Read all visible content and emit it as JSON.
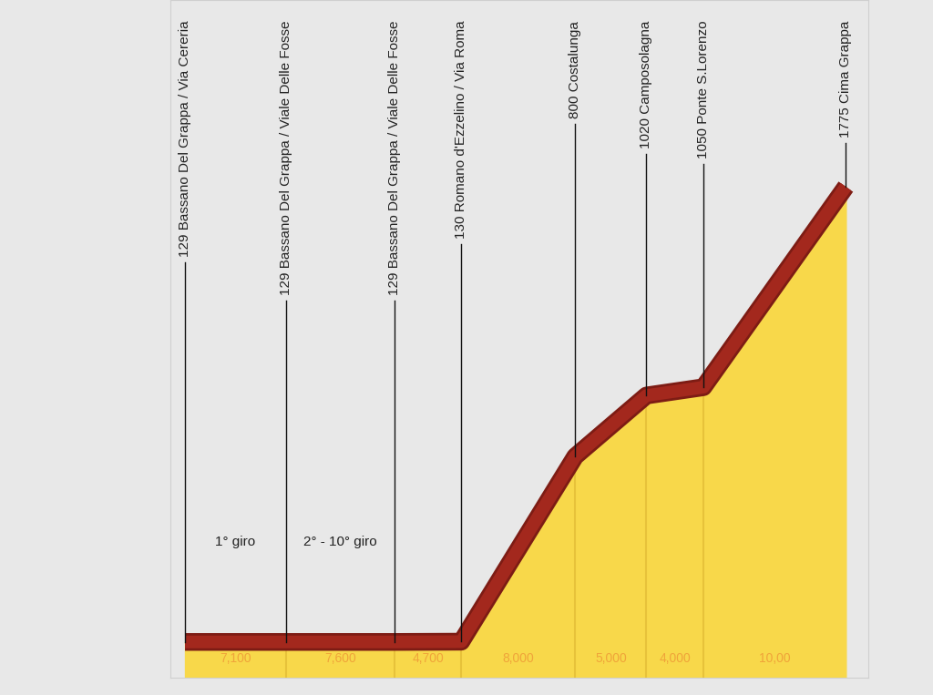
{
  "chart_data": {
    "type": "area",
    "categories": [
      "129 Bassano Del Grappa / Via Cereria",
      "129 Bassano Del Grappa / Viale Delle Fosse",
      "129 Bassano Del Grappa / Viale Delle Fosse",
      "130 Romano d'Ezzelino / Via Roma",
      "800 Costalunga",
      "1020 Camposolagna",
      "1050 Ponte S.Lorenzo",
      "1775 Cima Grappa"
    ],
    "values": [
      129,
      129,
      129,
      130,
      800,
      1020,
      1050,
      1775
    ],
    "segments": {
      "values": [
        7.1,
        7.6,
        4.7,
        8.0,
        5.0,
        4.0,
        10.0
      ],
      "value_labels": [
        "7,100",
        "7,600",
        "4,700",
        "8,000",
        "5,000",
        "4,000",
        "10,00"
      ],
      "labels": [
        "1° giro",
        "2° - 10° giro",
        null,
        null,
        null,
        null,
        null
      ]
    },
    "xlim": [
      -1,
      48
    ],
    "ylim": [
      0,
      2450
    ],
    "tick_labels": false,
    "color": "#f8d84a"
  }
}
